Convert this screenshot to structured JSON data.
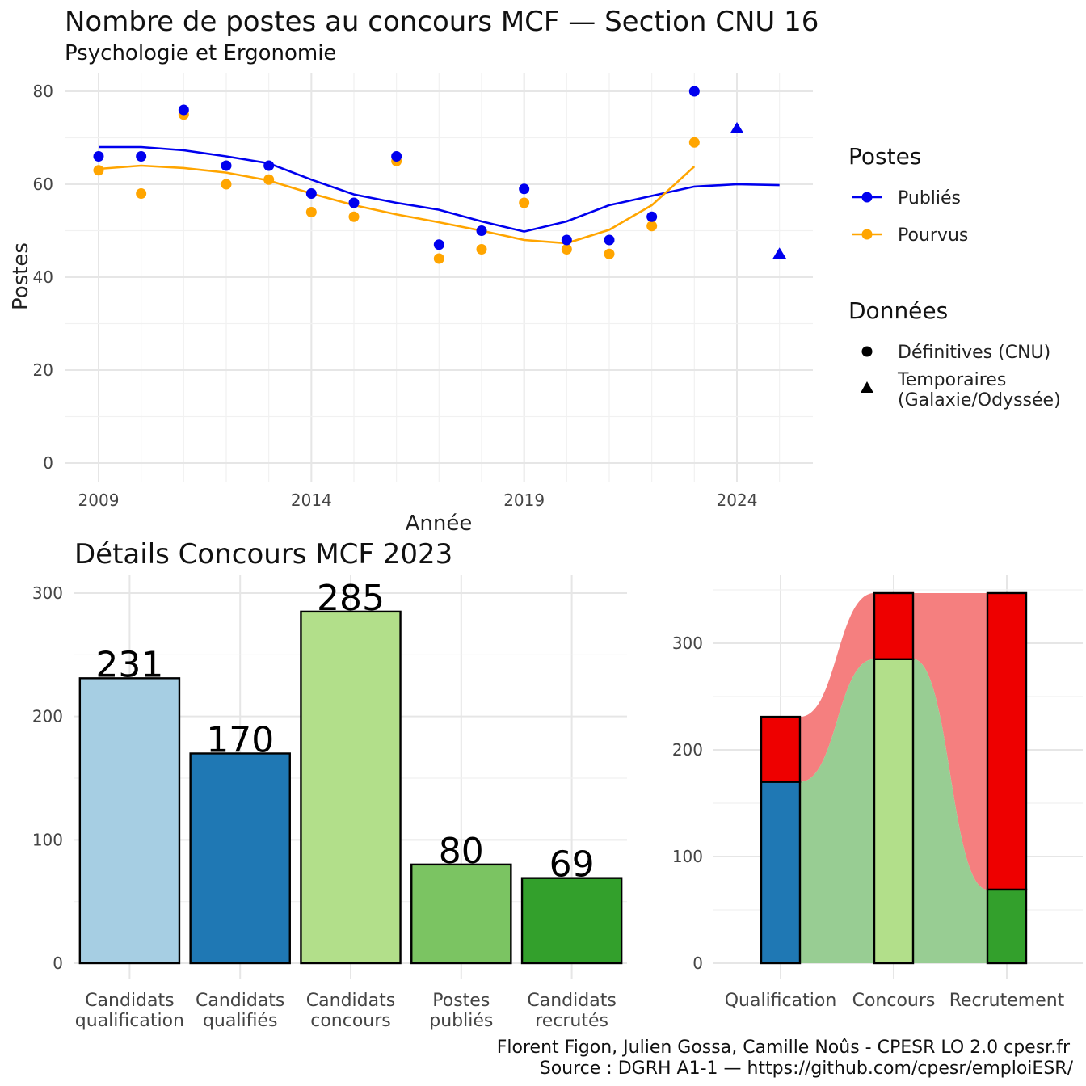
{
  "title": "Nombre de postes au concours MCF —  Section CNU 16",
  "subtitle": "Psychologie et Ergonomie",
  "chart_data": [
    {
      "type": "scatter",
      "title": "Nombre de postes au concours MCF —  Section CNU 16",
      "subtitle": "Psychologie et Ergonomie",
      "xlabel": "Année",
      "ylabel": "Postes",
      "xlim": [
        2008.5,
        2026.5
      ],
      "ylim": [
        0,
        80
      ],
      "x_ticks": [
        2009,
        2014,
        2019,
        2024
      ],
      "y_ticks": [
        0,
        20,
        40,
        60,
        80
      ],
      "grid": true,
      "legend_position": "right",
      "legend": {
        "postes_title": "Postes",
        "postes_items": [
          {
            "label": "Publiés",
            "color": "#0000ee"
          },
          {
            "label": "Pourvus",
            "color": "#ffa500"
          }
        ],
        "donnees_title": "Données",
        "donnees_items": [
          {
            "label": "Définitives (CNU)",
            "shape": "circle"
          },
          {
            "label": "Temporaires",
            "label2": "(Galaxie/Odyssée)",
            "shape": "triangle"
          }
        ]
      },
      "series": [
        {
          "name": "Publiés",
          "color": "#0000ee",
          "definitives": [
            [
              2009,
              66
            ],
            [
              2010,
              66
            ],
            [
              2011,
              76
            ],
            [
              2012,
              64
            ],
            [
              2013,
              64
            ],
            [
              2014,
              58
            ],
            [
              2015,
              56
            ],
            [
              2016,
              66
            ],
            [
              2017,
              47
            ],
            [
              2018,
              50
            ],
            [
              2019,
              59
            ],
            [
              2020,
              48
            ],
            [
              2021,
              48
            ],
            [
              2022,
              53
            ],
            [
              2023,
              80
            ]
          ],
          "temporaires": [
            [
              2024,
              72
            ],
            [
              2025,
              45
            ]
          ],
          "smooth": [
            [
              2009,
              68
            ],
            [
              2010,
              68
            ],
            [
              2011,
              67.3
            ],
            [
              2012,
              66
            ],
            [
              2013,
              64.5
            ],
            [
              2014,
              61
            ],
            [
              2015,
              57.8
            ],
            [
              2016,
              56
            ],
            [
              2017,
              54.5
            ],
            [
              2018,
              52
            ],
            [
              2019,
              49.8
            ],
            [
              2020,
              52
            ],
            [
              2021,
              55.5
            ],
            [
              2022,
              57.5
            ],
            [
              2023,
              59.5
            ],
            [
              2024,
              60
            ],
            [
              2025,
              59.8
            ]
          ]
        },
        {
          "name": "Pourvus",
          "color": "#ffa500",
          "definitives": [
            [
              2009,
              63
            ],
            [
              2010,
              58
            ],
            [
              2011,
              75
            ],
            [
              2012,
              60
            ],
            [
              2013,
              61
            ],
            [
              2014,
              54
            ],
            [
              2015,
              53
            ],
            [
              2016,
              65
            ],
            [
              2017,
              44
            ],
            [
              2018,
              46
            ],
            [
              2019,
              56
            ],
            [
              2020,
              46
            ],
            [
              2021,
              45
            ],
            [
              2022,
              51
            ],
            [
              2023,
              69
            ]
          ],
          "smooth": [
            [
              2009,
              63.3
            ],
            [
              2010,
              64
            ],
            [
              2011,
              63.5
            ],
            [
              2012,
              62.5
            ],
            [
              2013,
              60.8
            ],
            [
              2014,
              58
            ],
            [
              2015,
              55.5
            ],
            [
              2016,
              53.5
            ],
            [
              2017,
              51.8
            ],
            [
              2018,
              50
            ],
            [
              2019,
              48
            ],
            [
              2020,
              47.3
            ],
            [
              2021,
              50.2
            ],
            [
              2022,
              55.5
            ],
            [
              2023,
              63.8
            ]
          ]
        }
      ]
    },
    {
      "type": "bar",
      "title": "Détails Concours MCF 2023",
      "categories": [
        [
          "Candidats",
          "qualification"
        ],
        [
          "Candidats",
          "qualifiés"
        ],
        [
          "Candidats",
          "concours"
        ],
        [
          "Postes",
          "publiés"
        ],
        [
          "Candidats",
          "recrutés"
        ]
      ],
      "values": [
        231,
        170,
        285,
        80,
        69
      ],
      "colors": [
        "#a6cee3",
        "#1f78b4",
        "#b2df8a",
        "#7bc462",
        "#33a02c"
      ],
      "ylim": [
        0,
        310
      ],
      "y_ticks": [
        0,
        100,
        200,
        300
      ],
      "grid": true
    },
    {
      "type": "bar",
      "subtype": "stacked-flow",
      "categories": [
        "Qualification",
        "Concours",
        "Recrutement"
      ],
      "stacks": [
        [
          {
            "value": 170,
            "color": "#1f78b4"
          },
          {
            "value": 61,
            "color": "#ee0000"
          }
        ],
        [
          {
            "value": 285,
            "color": "#b2df8a"
          },
          {
            "value": 62,
            "color": "#ee0000"
          }
        ],
        [
          {
            "value": 69,
            "color": "#33a02c"
          },
          {
            "value": 278,
            "color": "#ee0000"
          }
        ]
      ],
      "flow_colors": {
        "lower": "#98cd93",
        "upper": "#f57f7f"
      },
      "ylim": [
        0,
        350
      ],
      "y_ticks": [
        0,
        100,
        200,
        300
      ],
      "grid": true
    }
  ],
  "caption": {
    "line1": "Florent Figon, Julien Gossa, Camille Noûs - CPESR LO 2.0 cpesr.fr",
    "line2": "Source : DGRH A1-1 — https://github.com/cpesr/emploiESR/"
  }
}
